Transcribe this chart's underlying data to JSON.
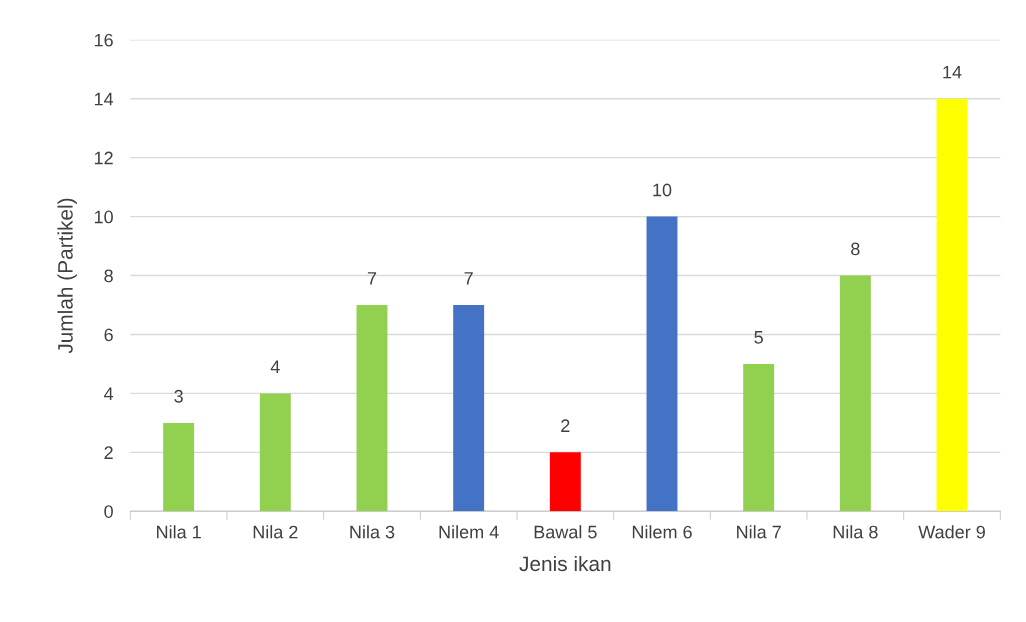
{
  "chart_data": {
    "type": "bar",
    "xlabel": "Jenis ikan",
    "ylabel": "Jumlah (Partikel)",
    "categories": [
      "Nila 1",
      "Nila 2",
      "Nila 3",
      "Nilem 4",
      "Bawal 5",
      "Nilem 6",
      "Nila 7",
      "Nila 8",
      "Wader 9"
    ],
    "values": [
      3,
      4,
      7,
      7,
      2,
      10,
      5,
      8,
      14
    ],
    "colors": [
      "#92d050",
      "#92d050",
      "#92d050",
      "#4472c4",
      "#ff0000",
      "#4472c4",
      "#92d050",
      "#92d050",
      "#ffff00"
    ],
    "ylim": [
      0,
      16
    ],
    "yticks": [
      0,
      2,
      4,
      6,
      8,
      10,
      12,
      14,
      16
    ],
    "grid": "y",
    "data_labels": true,
    "legend": false
  }
}
